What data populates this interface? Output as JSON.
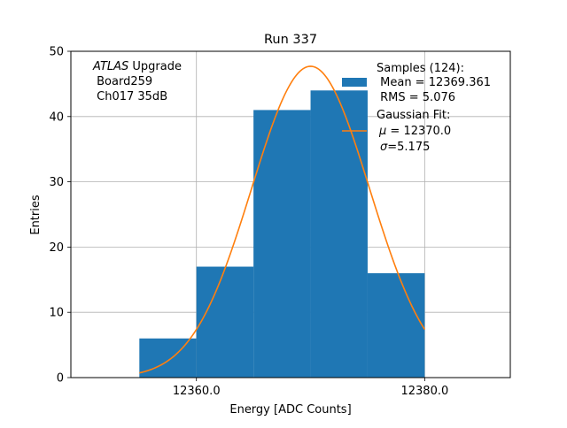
{
  "chart_data": {
    "type": "histogram",
    "title": "Run 337",
    "xlabel": "Energy [ADC Counts]",
    "ylabel": "Entries",
    "xlim": [
      12349.0,
      12387.5
    ],
    "ylim": [
      0,
      50
    ],
    "grid": true,
    "xticks": [
      {
        "value": 12360.0,
        "label": "12360.0"
      },
      {
        "value": 12380.0,
        "label": "12380.0"
      }
    ],
    "yticks": [
      {
        "value": 0,
        "label": "0"
      },
      {
        "value": 10,
        "label": "10"
      },
      {
        "value": 20,
        "label": "20"
      },
      {
        "value": 30,
        "label": "30"
      },
      {
        "value": 40,
        "label": "40"
      },
      {
        "value": 50,
        "label": "50"
      }
    ],
    "bins": [
      {
        "x0": 12355,
        "x1": 12360,
        "count": 6
      },
      {
        "x0": 12360,
        "x1": 12365,
        "count": 17
      },
      {
        "x0": 12365,
        "x1": 12370,
        "count": 41
      },
      {
        "x0": 12370,
        "x1": 12375,
        "count": 44
      },
      {
        "x0": 12375,
        "x1": 12380,
        "count": 16
      }
    ],
    "fit": {
      "mu": 12370.0,
      "sigma": 5.175,
      "amplitude": 47.7,
      "x_range": [
        12355,
        12380
      ]
    },
    "colors": {
      "bars": "#1f77b4",
      "fit": "#ff7f0e",
      "grid": "#b0b0b0"
    },
    "annotation": {
      "line1_italic": "ATLAS",
      "line1_rest": " Upgrade",
      "line2": " Board259",
      "line3": " Ch017 35dB"
    },
    "legend": {
      "placement": "top-right",
      "samples_title": "Samples (124):",
      "samples_mean": " Mean = 12369.361",
      "samples_rms": " RMS = 5.076",
      "fit_title": "Gaussian Fit:",
      "fit_mu_symbol": "μ",
      "fit_mu_rest": " = 12370.0",
      "fit_sigma_symbol": "σ",
      "fit_sigma_rest": "=5.175"
    }
  }
}
